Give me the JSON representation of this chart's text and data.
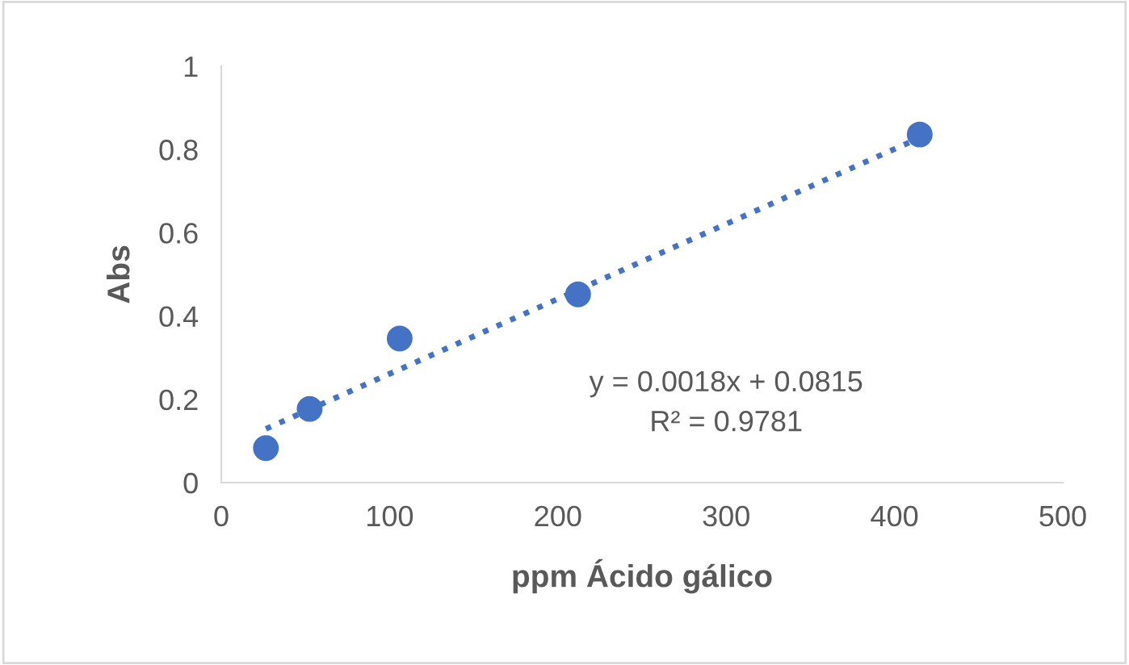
{
  "chart_data": {
    "type": "scatter",
    "xlabel": "ppm Ácido gálico",
    "ylabel": "Abs",
    "xlim": [
      0,
      500
    ],
    "xticks": [
      0,
      100,
      200,
      300,
      400,
      500
    ],
    "ylim": [
      0,
      1
    ],
    "yticks": [
      0,
      0.2,
      0.4,
      0.6,
      0.8,
      1
    ],
    "grid": false,
    "legend": false,
    "series": [
      {
        "color": "#4472c4",
        "marker": "circle",
        "x": [
          26.5,
          52.5,
          106,
          212,
          415
        ],
        "values": [
          0.083,
          0.177,
          0.346,
          0.452,
          0.836
        ]
      },
      {
        "type": "line",
        "color": "#4472c4",
        "line_style": "dotted",
        "marker": "none",
        "x": [
          26.5,
          415
        ],
        "values": [
          0.129,
          0.828
        ]
      }
    ],
    "annotations": [
      "y = 0.0018x + 0.0815\nR² = 0.9781"
    ]
  }
}
